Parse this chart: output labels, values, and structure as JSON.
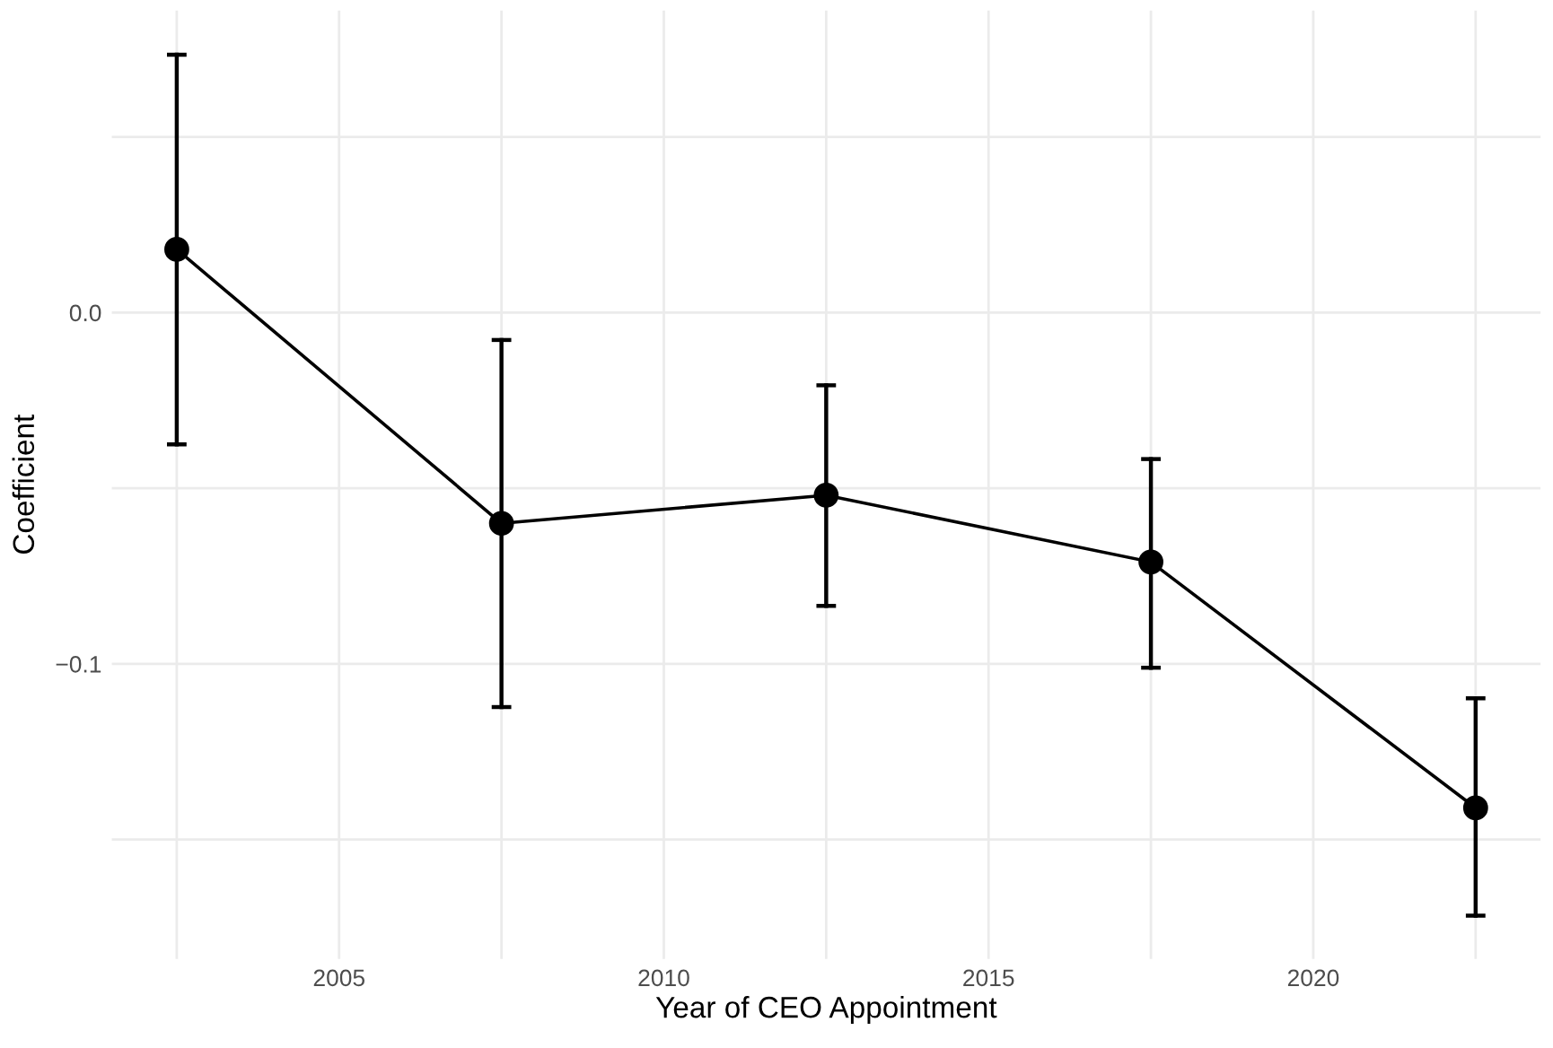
{
  "chart_data": {
    "type": "line",
    "xlabel": "Year of CEO Appointment",
    "ylabel": "Coefficient",
    "x": [
      2002.5,
      2007.5,
      2012.5,
      2017.5,
      2022.5
    ],
    "series": [
      {
        "color": "#000000",
        "values": [
          0.018,
          -0.06,
          -0.052,
          -0.071,
          -0.141
        ],
        "errors": [
          [
            -0.0375,
            0.0734
          ],
          [
            -0.1123,
            -0.0078
          ],
          [
            -0.0835,
            -0.0207
          ],
          [
            -0.1011,
            -0.0417
          ],
          [
            -0.1717,
            -0.1098
          ]
        ]
      }
    ],
    "marker": "circle",
    "line_style": "solid",
    "grid": true,
    "xlim": [
      2001.5,
      2023.5
    ],
    "xticks": [
      {
        "value": 2002.5,
        "label": null
      },
      2005,
      {
        "value": 2007.5,
        "label": null
      },
      2010,
      {
        "value": 2012.5,
        "label": null
      },
      2015,
      {
        "value": 2017.5,
        "label": null
      },
      2020,
      {
        "value": 2022.5,
        "label": null
      }
    ],
    "ylim": [
      -0.184,
      0.086
    ],
    "yticks": [
      {
        "value": -0.15,
        "label": null
      },
      {
        "value": -0.1,
        "label": "−0.1"
      },
      {
        "value": -0.05,
        "label": null
      },
      {
        "value": 0.0,
        "label": "0.0"
      },
      {
        "value": 0.05,
        "label": null
      }
    ]
  }
}
